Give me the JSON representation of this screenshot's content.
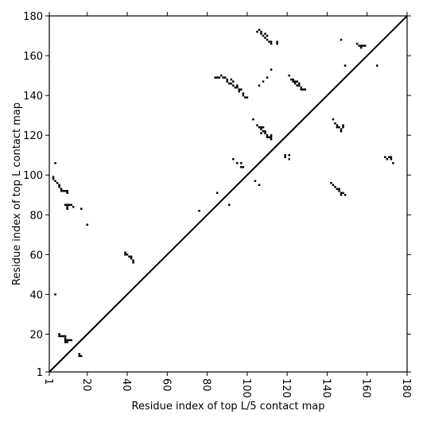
{
  "chart_data": {
    "type": "scatter",
    "xlabel": "Residue index of top L/5 contact map",
    "ylabel": "Residue index of top L contact map",
    "color": "#000000",
    "xlim": [
      1,
      180
    ],
    "ylim": [
      1,
      180
    ],
    "xticks": [
      1,
      20,
      40,
      60,
      80,
      100,
      120,
      140,
      160,
      180
    ],
    "yticks": [
      1,
      20,
      40,
      60,
      80,
      100,
      120,
      140,
      160,
      180
    ],
    "series": [
      {
        "name": "contacts",
        "x": [
          4,
          3,
          3,
          4,
          5,
          6,
          6,
          7,
          7,
          8,
          9,
          10,
          10,
          9,
          10,
          11,
          12,
          13,
          10,
          10,
          17,
          20,
          4,
          6,
          6,
          7,
          8,
          9,
          9,
          9,
          9,
          10,
          10,
          11,
          12,
          16,
          16,
          17,
          39,
          39,
          40,
          41,
          42,
          42,
          43,
          43,
          76,
          85,
          91,
          93,
          95,
          97,
          97,
          98,
          104,
          106,
          119,
          119,
          121,
          121,
          142,
          143,
          144,
          145,
          146,
          146,
          147,
          147,
          148,
          149,
          169,
          170,
          171,
          172,
          172,
          173,
          105,
          106,
          107,
          107,
          108,
          109,
          109,
          110,
          110,
          111,
          112,
          112,
          115,
          115,
          112,
          110,
          108,
          106,
          84,
          85,
          86,
          87,
          88,
          89,
          90,
          90,
          91,
          92,
          92,
          93,
          93,
          94,
          95,
          95,
          96,
          96,
          97,
          98,
          98,
          99,
          100,
          103,
          105,
          106,
          107,
          108,
          107,
          108,
          107,
          109,
          109,
          110,
          110,
          111,
          112,
          112,
          112,
          121,
          122,
          123,
          123,
          124,
          124,
          125,
          125,
          126,
          126,
          127,
          127,
          128,
          129,
          143,
          144,
          145,
          145,
          146,
          147,
          147,
          148,
          148,
          147,
          149,
          155,
          156,
          157,
          157,
          158,
          159,
          165
        ],
        "values": [
          106,
          99,
          98,
          97,
          96,
          95,
          94,
          93,
          92,
          92,
          92,
          92,
          91,
          85,
          85,
          85,
          85,
          84,
          84,
          83,
          83,
          75,
          40,
          20,
          19,
          19,
          19,
          19,
          18,
          17,
          16,
          16,
          17,
          17,
          17,
          10,
          9,
          9,
          61,
          60,
          60,
          59,
          59,
          58,
          57,
          56,
          82,
          91,
          85,
          108,
          106,
          106,
          104,
          104,
          97,
          95,
          110,
          109,
          110,
          108,
          96,
          95,
          94,
          93,
          93,
          92,
          91,
          90,
          91,
          90,
          109,
          108,
          109,
          109,
          108,
          106,
          172,
          173,
          172,
          171,
          170,
          171,
          169,
          170,
          168,
          167,
          167,
          166,
          167,
          166,
          153,
          149,
          147,
          145,
          149,
          149,
          149,
          150,
          149,
          149,
          148,
          147,
          146,
          148,
          146,
          145,
          147,
          144,
          145,
          144,
          143,
          142,
          143,
          141,
          140,
          139,
          139,
          128,
          125,
          124,
          124,
          124,
          123,
          122,
          121,
          122,
          121,
          120,
          119,
          119,
          119,
          120,
          118,
          150,
          148,
          147,
          148,
          147,
          146,
          147,
          145,
          146,
          145,
          144,
          143,
          143,
          143,
          128,
          126,
          125,
          124,
          124,
          123,
          122,
          124,
          125,
          168,
          155,
          166,
          165,
          164,
          165,
          165,
          165,
          155
        ]
      }
    ]
  }
}
